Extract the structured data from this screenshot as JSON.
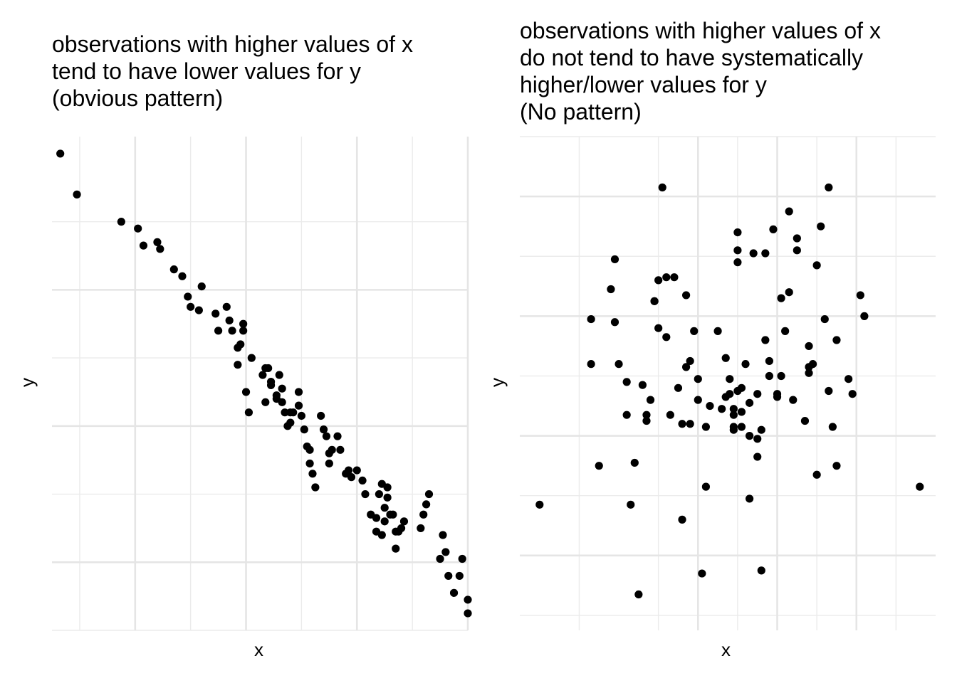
{
  "chart_data": [
    {
      "type": "scatter",
      "title": "observations with higher values of x\ntend to have lower values for y\n(obvious pattern)",
      "xlabel": "x",
      "ylabel": "y",
      "grid": true,
      "x": [
        0.3,
        0.9,
        2.5,
        3.1,
        3.3,
        3.8,
        3.9,
        4.4,
        4.7,
        4.9,
        5.0,
        5.3,
        5.4,
        5.9,
        6.0,
        6.3,
        6.4,
        6.5,
        6.7,
        6.7,
        6.8,
        6.9,
        6.9,
        7.0,
        7.1,
        7.2,
        7.6,
        7.7,
        7.7,
        7.8,
        7.9,
        7.9,
        8.1,
        8.1,
        8.2,
        8.3,
        8.3,
        8.4,
        8.5,
        8.6,
        8.6,
        8.7,
        8.9,
        8.9,
        9.0,
        9.1,
        9.2,
        9.3,
        9.3,
        9.4,
        9.5,
        9.7,
        9.8,
        9.9,
        10.0,
        10.0,
        10.1,
        10.3,
        10.4,
        10.6,
        10.7,
        10.8,
        11.0,
        11.2,
        11.3,
        11.5,
        11.7,
        11.7,
        11.8,
        11.9,
        11.9,
        12.0,
        12.0,
        12.1,
        12.1,
        12.2,
        12.3,
        12.4,
        12.4,
        12.5,
        12.6,
        12.7,
        13.3,
        13.4,
        13.5,
        13.6,
        14.0,
        14.1,
        14.2,
        14.3,
        14.5,
        14.7,
        14.8,
        15.0,
        15.0
      ],
      "y": [
        8.0,
        6.8,
        6.0,
        5.8,
        5.3,
        5.4,
        5.2,
        4.6,
        4.4,
        3.8,
        3.5,
        3.4,
        4.1,
        3.3,
        2.8,
        3.5,
        3.1,
        2.8,
        1.8,
        2.3,
        2.4,
        2.8,
        3.0,
        1.0,
        0.4,
        2.0,
        1.5,
        1.7,
        0.7,
        1.7,
        1.2,
        1.3,
        0.9,
        0.8,
        1.5,
        0.7,
        1.1,
        0.4,
        0.0,
        0.4,
        0.1,
        0.4,
        1.0,
        0.6,
        0.3,
        -0.1,
        -0.6,
        -0.7,
        -1.1,
        -1.4,
        -1.8,
        0.3,
        -0.1,
        -0.3,
        -0.8,
        -1.1,
        -0.7,
        -0.3,
        -0.7,
        -1.4,
        -1.3,
        -1.5,
        -1.3,
        -1.6,
        -2.0,
        -2.6,
        -2.7,
        -3.1,
        -2.0,
        -1.7,
        -3.2,
        -2.4,
        -2.8,
        -1.8,
        -2.1,
        -2.6,
        -2.6,
        -3.1,
        -3.6,
        -3.1,
        -3.0,
        -2.8,
        -3.0,
        -2.6,
        -2.3,
        -2.0,
        -3.9,
        -3.2,
        -3.7,
        -4.4,
        -4.9,
        -4.4,
        -3.9,
        -5.1,
        -5.5
      ]
    },
    {
      "type": "scatter",
      "title": "observations with higher values of x\ndo not tend to have systematically\nhigher/lower values for y\n(No pattern)",
      "xlabel": "x",
      "ylabel": "y",
      "grid": true,
      "x": [
        0.0,
        1.3,
        1.3,
        1.5,
        1.8,
        1.9,
        1.9,
        2.0,
        2.2,
        2.2,
        2.3,
        2.4,
        2.5,
        2.6,
        2.7,
        2.7,
        2.8,
        2.9,
        2.9,
        3.0,
        3.0,
        3.1,
        3.2,
        3.2,
        3.3,
        3.4,
        3.5,
        3.6,
        3.6,
        3.7,
        3.7,
        3.8,
        3.8,
        3.9,
        4.0,
        4.0,
        4.1,
        4.2,
        4.2,
        4.3,
        4.5,
        4.6,
        4.7,
        4.7,
        4.8,
        4.8,
        4.9,
        4.9,
        4.9,
        4.9,
        5.0,
        5.0,
        5.0,
        5.0,
        5.1,
        5.1,
        5.1,
        5.2,
        5.3,
        5.3,
        5.3,
        5.4,
        5.5,
        5.5,
        5.5,
        5.6,
        5.6,
        5.7,
        5.7,
        5.8,
        5.8,
        5.9,
        6.0,
        6.0,
        6.1,
        6.1,
        6.2,
        6.3,
        6.3,
        6.4,
        6.5,
        6.5,
        6.7,
        6.8,
        6.8,
        6.8,
        6.9,
        7.0,
        7.0,
        7.1,
        7.2,
        7.3,
        7.3,
        7.4,
        7.5,
        7.5,
        7.8,
        7.9,
        8.1,
        8.2,
        9.6
      ],
      "y": [
        -4.3,
        0.4,
        1.9,
        -3.0,
        2.9,
        1.8,
        3.9,
        0.4,
        -1.3,
        -0.2,
        -4.3,
        -2.9,
        -7.3,
        -0.3,
        -1.5,
        -1.3,
        -0.8,
        2.5,
        2.5,
        3.2,
        1.6,
        6.3,
        3.3,
        1.3,
        -1.3,
        3.3,
        -0.4,
        -1.6,
        -4.8,
        0.3,
        2.7,
        -1.6,
        0.5,
        1.5,
        -0.8,
        -0.1,
        -6.6,
        -1.7,
        -3.7,
        -1.0,
        1.5,
        -1.1,
        0.6,
        -0.7,
        -0.1,
        -0.6,
        -1.7,
        -1.1,
        -1.3,
        -1.8,
        -0.5,
        3.8,
        4.2,
        4.8,
        -0.4,
        -1.2,
        -1.7,
        0.4,
        -4.1,
        -2.0,
        -0.9,
        4.1,
        -2.1,
        -2.7,
        -0.6,
        -1.8,
        -6.5,
        1.2,
        4.1,
        0.0,
        0.5,
        4.9,
        -0.6,
        -0.7,
        2.6,
        0.0,
        1.5,
        2.8,
        5.5,
        -0.8,
        4.2,
        4.6,
        -1.5,
        0.1,
        0.3,
        1.0,
        0.4,
        3.7,
        -3.3,
        5.0,
        1.9,
        -0.5,
        6.3,
        -1.7,
        1.2,
        -3.0,
        -0.1,
        -0.6,
        2.7,
        2.0,
        -3.7
      ]
    }
  ]
}
